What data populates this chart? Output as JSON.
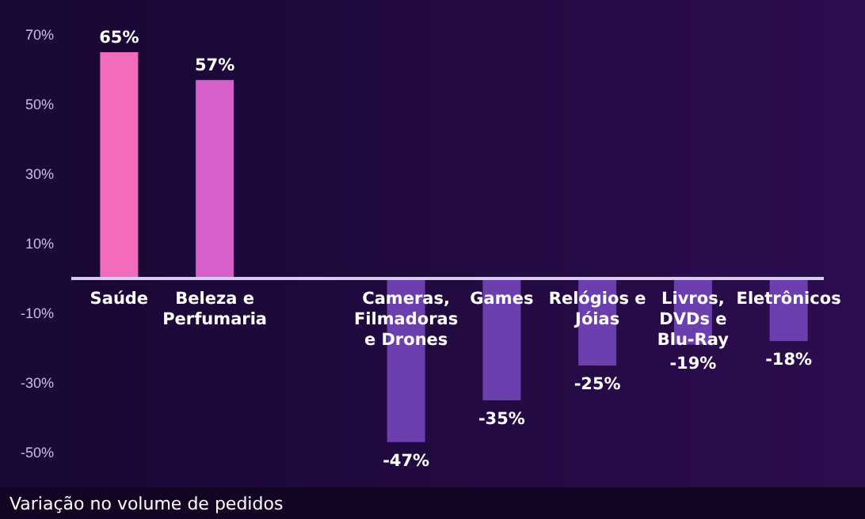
{
  "chart_data": {
    "type": "bar",
    "categories": [
      "Saúde",
      "Beleza e Perfumaria",
      "Cameras, Filmadoras e Drones",
      "Games",
      "Relógios e Jóias",
      "Livros, DVDs e Blu-Ray",
      "Eletrônicos"
    ],
    "values": [
      65,
      57,
      -47,
      -35,
      -25,
      -19,
      -18
    ],
    "value_labels": [
      "65%",
      "57%",
      "-47%",
      "-35%",
      "-25%",
      "-19%",
      "-18%"
    ],
    "colors": [
      "#f26cb9",
      "#d75fca",
      "#6b3fae",
      "#6b3fae",
      "#6b3fae",
      "#6b3fae",
      "#6b3fae"
    ],
    "ylim": [
      -50,
      70
    ],
    "yticks": [
      {
        "value": 70,
        "label": "70%"
      },
      {
        "value": 50,
        "label": "50%"
      },
      {
        "value": 30,
        "label": "30%"
      },
      {
        "value": 10,
        "label": "10%"
      },
      {
        "value": -10,
        "label": "-10%"
      },
      {
        "value": -30,
        "label": "-30%"
      },
      {
        "value": -50,
        "label": "-50%"
      }
    ],
    "grid": false,
    "annotations": [
      "Variação no volume de pedidos"
    ]
  }
}
